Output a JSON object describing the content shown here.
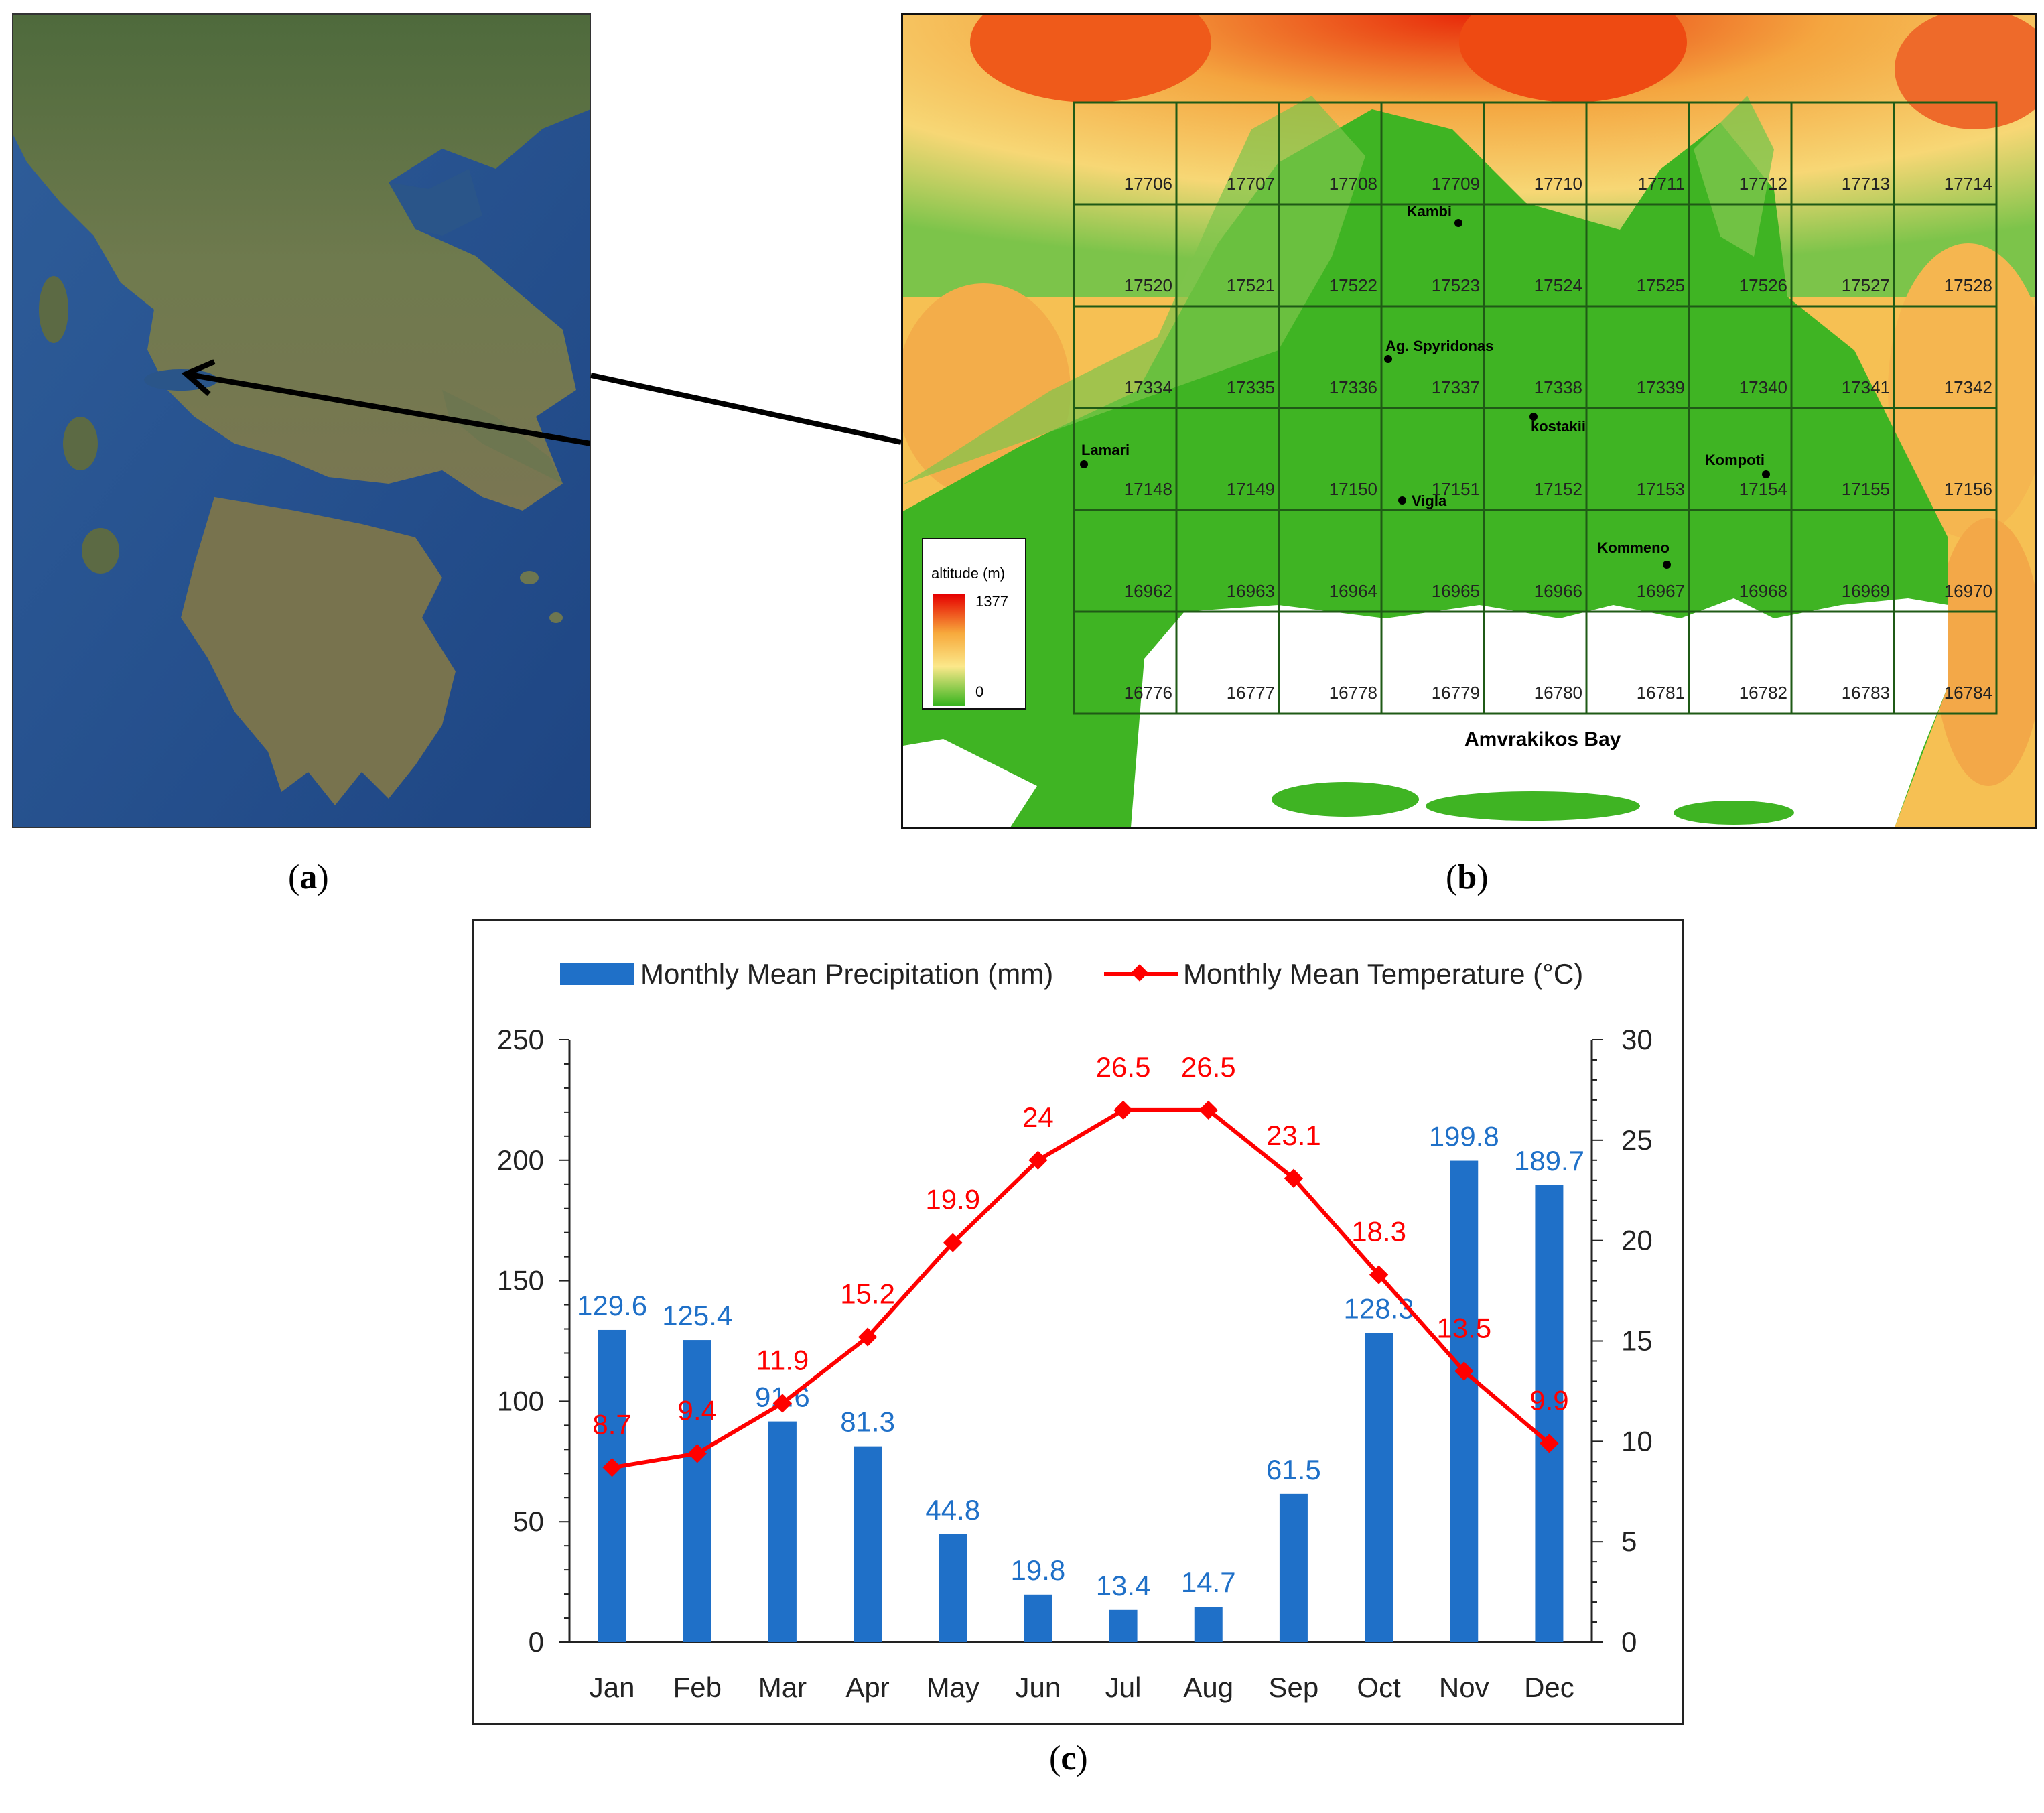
{
  "panels": {
    "a": {
      "label": "a"
    },
    "b": {
      "label": "b"
    },
    "c": {
      "label": "c"
    }
  },
  "map": {
    "legend_title": "altitude (m)",
    "legend_max": "1377",
    "legend_min": "0",
    "legend_colors": [
      "#e60000",
      "#f7a93c",
      "#fbe88a",
      "#39b51f"
    ],
    "bay_label": "Amvrakikos Bay",
    "grid_rows": [
      [
        "17706",
        "17707",
        "17708",
        "17709",
        "17710",
        "17711",
        "17712",
        "17713",
        "17714"
      ],
      [
        "17520",
        "17521",
        "17522",
        "17523",
        "17524",
        "17525",
        "17526",
        "17527",
        "17528"
      ],
      [
        "17334",
        "17335",
        "17336",
        "17337",
        "17338",
        "17339",
        "17340",
        "17341",
        "17342"
      ],
      [
        "17148",
        "17149",
        "17150",
        "17151",
        "17152",
        "17153",
        "17154",
        "17155",
        "17156"
      ],
      [
        "16962",
        "16963",
        "16964",
        "16965",
        "16966",
        "16967",
        "16968",
        "16969",
        "16970"
      ],
      [
        "16776",
        "16777",
        "16778",
        "16779",
        "16780",
        "16781",
        "16782",
        "16783",
        "16784"
      ]
    ],
    "places": {
      "kambi": "Kambi",
      "ag_spyridonas": "Ag. Spyridonas",
      "kostakii": "kostakii",
      "lamari": "Lamari",
      "kompoti": "Kompoti",
      "vigla": "Vigla",
      "kommeno": "Kommeno"
    }
  },
  "chart_data": {
    "type": "bar+line",
    "categories": [
      "Jan",
      "Feb",
      "Mar",
      "Apr",
      "May",
      "Jun",
      "Jul",
      "Aug",
      "Sep",
      "Oct",
      "Nov",
      "Dec"
    ],
    "series": [
      {
        "name": "Monthly Mean Precipitation (mm)",
        "kind": "bar",
        "axis": "left",
        "color": "#1f70c8",
        "values": [
          129.6,
          125.4,
          91.6,
          81.3,
          44.8,
          19.8,
          13.4,
          14.7,
          61.5,
          128.3,
          199.8,
          189.7
        ]
      },
      {
        "name": "Monthly Mean Temperature (°C)",
        "kind": "line",
        "axis": "right",
        "color": "#ff0000",
        "values": [
          8.7,
          9.4,
          11.9,
          15.2,
          19.9,
          24,
          26.5,
          26.5,
          23.1,
          18.3,
          13.5,
          9.9
        ]
      }
    ],
    "y_left": {
      "ylim": [
        0,
        250
      ],
      "ticks": [
        "0",
        "50",
        "100",
        "150",
        "200",
        "250"
      ]
    },
    "y_right": {
      "ylim": [
        0,
        30
      ],
      "ticks": [
        "0",
        "5",
        "10",
        "15",
        "20",
        "25",
        "30"
      ]
    },
    "legend": "top",
    "grid": false
  }
}
